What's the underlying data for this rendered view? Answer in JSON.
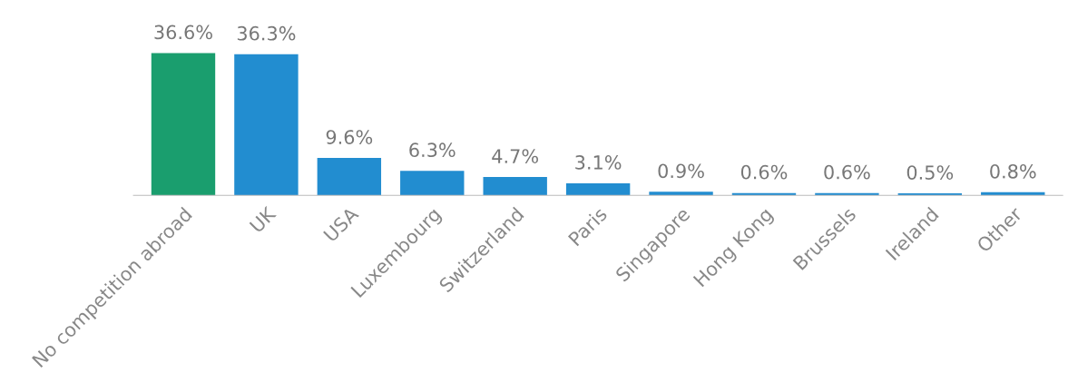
{
  "chart_data": {
    "type": "bar",
    "categories": [
      "No competition abroad",
      "UK",
      "USA",
      "Luxembourg",
      "Switzerland",
      "Paris",
      "Singapore",
      "Hong Kong",
      "Brussels",
      "Ireland",
      "Other"
    ],
    "values": [
      36.6,
      36.3,
      9.6,
      6.3,
      4.7,
      3.1,
      0.9,
      0.6,
      0.6,
      0.5,
      0.8
    ],
    "colors": [
      "#1a9e6e",
      "#228dd0",
      "#228dd0",
      "#228dd0",
      "#228dd0",
      "#228dd0",
      "#228dd0",
      "#228dd0",
      "#228dd0",
      "#228dd0",
      "#228dd0"
    ],
    "value_labels": [
      "36.6%",
      "36.3%",
      "9.6%",
      "6.3%",
      "4.7%",
      "3.1%",
      "0.9%",
      "0.6%",
      "0.6%",
      "0.5%",
      "0.8%"
    ],
    "grid": false,
    "legend": false,
    "tick_labels": "x"
  }
}
